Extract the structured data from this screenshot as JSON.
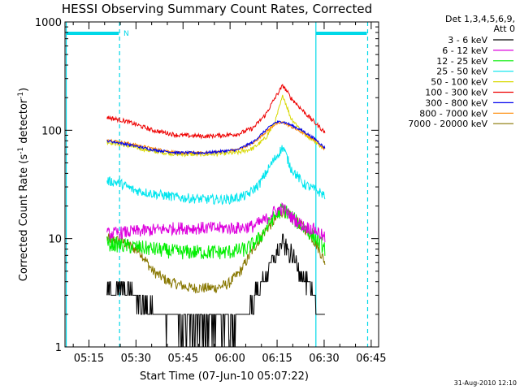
{
  "chart_data": {
    "type": "line",
    "title": "HESSI Observing Summary Count Rates, Corrected",
    "xlabel": "Start Time (07-Jun-10 05:07:22)",
    "ylabel_main": "Corrected Count Rate (s",
    "ylabel_sup1": "-1",
    "ylabel_mid": " detector",
    "ylabel_sup2": "-1",
    "ylabel_end": ")",
    "ylog": true,
    "ylim": [
      1,
      1000
    ],
    "xlim_min": [
      0,
      100
    ],
    "x_ticks": [
      "05:15",
      "05:30",
      "05:45",
      "06:00",
      "06:15",
      "06:30",
      "06:45"
    ],
    "x_tick_min": [
      7.63,
      22.63,
      37.63,
      52.63,
      67.63,
      82.63,
      97.63
    ],
    "y_ticks": [
      "1",
      "10",
      "100",
      "1000"
    ],
    "y_tick_vals": [
      1,
      10,
      100,
      1000
    ],
    "legend_header": [
      "Det 1,3,4,5,6,9,",
      "Att 0"
    ],
    "stamp": "31-Aug-2010 12:10",
    "night_marker": "N",
    "eclipse_boundaries_min": [
      0.4,
      17.4,
      80.0,
      96.5
    ],
    "series": [
      {
        "name": "3 - 6 keV",
        "color": "#000000",
        "x": [
          13.4,
          20,
          28,
          31,
          36,
          45,
          55,
          58,
          62,
          66,
          69.5,
          73,
          77,
          79,
          83
        ],
        "y": [
          3.3,
          3.3,
          2.2,
          1.8,
          1.6,
          1.6,
          1.6,
          2.2,
          3.5,
          6,
          9,
          6.5,
          4,
          3,
          1.4
        ]
      },
      {
        "name": "6 - 12 keV",
        "color": "#dd00dd",
        "x": [
          13.4,
          20,
          28,
          36,
          45,
          55,
          60,
          64,
          67,
          69.5,
          72,
          76,
          80,
          83
        ],
        "y": [
          11,
          11.5,
          12,
          12.5,
          12.5,
          12.5,
          13,
          15,
          18,
          19,
          16,
          13,
          12,
          10
        ]
      },
      {
        "name": "12 - 25 keV",
        "color": "#00ee00",
        "x": [
          13.4,
          20,
          28,
          36,
          45,
          52,
          58,
          62,
          66,
          69.5,
          73,
          77,
          80,
          83
        ],
        "y": [
          9,
          8.5,
          8,
          7.5,
          7.5,
          7.5,
          8,
          10,
          15,
          19,
          15,
          12,
          10,
          8
        ]
      },
      {
        "name": "25 - 50 keV",
        "color": "#00e5ee",
        "x": [
          13.4,
          17,
          22,
          28,
          36,
          45,
          52,
          58,
          62,
          66,
          69.5,
          72,
          76,
          80,
          83
        ],
        "y": [
          34,
          33,
          28,
          26,
          24,
          23,
          23,
          25,
          32,
          50,
          70,
          45,
          32,
          28,
          25
        ]
      },
      {
        "name": "50 - 100 keV",
        "color": "#d8d800",
        "x": [
          13.4,
          20,
          28,
          36,
          45,
          55,
          60,
          64,
          67,
          69.5,
          72,
          76,
          80,
          83
        ],
        "y": [
          78,
          72,
          64,
          60,
          60,
          62,
          68,
          85,
          120,
          210,
          130,
          95,
          78,
          66
        ]
      },
      {
        "name": "100 - 300 keV",
        "color": "#ee0000",
        "x": [
          13.4,
          20,
          28,
          36,
          45,
          55,
          60,
          64,
          67,
          69.5,
          72,
          76,
          80,
          83
        ],
        "y": [
          132,
          120,
          100,
          90,
          88,
          92,
          105,
          140,
          200,
          260,
          200,
          150,
          115,
          95
        ]
      },
      {
        "name": "300 - 800 keV",
        "color": "#0000ee",
        "x": [
          13.4,
          20,
          28,
          36,
          45,
          55,
          60,
          64,
          67,
          69.5,
          72,
          76,
          80,
          83
        ],
        "y": [
          80,
          74,
          66,
          62,
          62,
          66,
          78,
          100,
          118,
          120,
          112,
          98,
          82,
          68
        ]
      },
      {
        "name": "800 - 7000 keV",
        "color": "#ff8800",
        "x": [
          13.4,
          20,
          28,
          36,
          45,
          55,
          60,
          64,
          67,
          69.5,
          72,
          76,
          80,
          83
        ],
        "y": [
          82,
          76,
          68,
          62,
          62,
          66,
          76,
          96,
          114,
          118,
          108,
          94,
          80,
          66
        ]
      },
      {
        "name": "7000 - 20000 keV",
        "color": "#887700",
        "x": [
          13.4,
          18,
          24,
          28,
          33,
          40,
          48,
          52,
          56,
          60,
          64,
          69.5,
          73,
          77,
          80,
          83
        ],
        "y": [
          10,
          9.5,
          7.5,
          5,
          4,
          3.5,
          3.5,
          3.8,
          5,
          8,
          12,
          18,
          15,
          12,
          9,
          6
        ]
      }
    ]
  }
}
